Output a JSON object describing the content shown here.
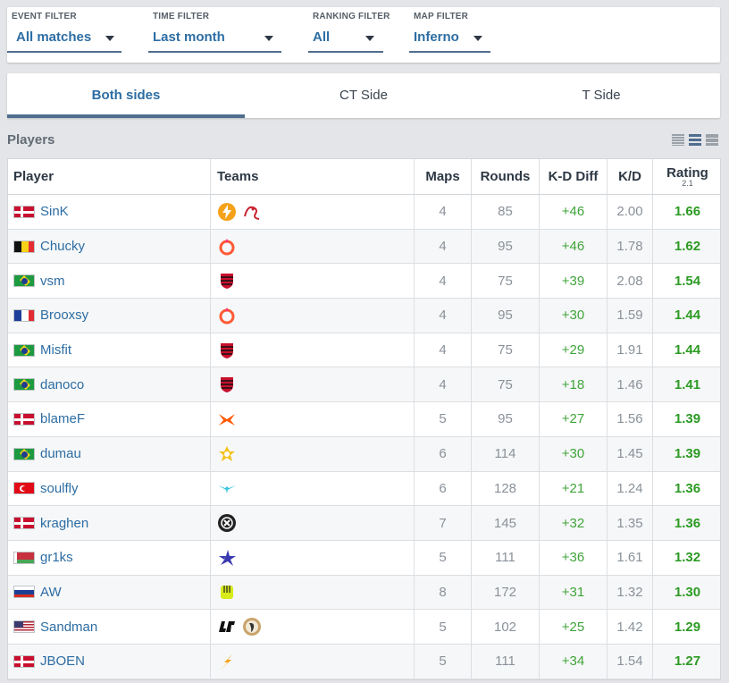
{
  "filters": {
    "event": {
      "label": "EVENT FILTER",
      "value": "All matches"
    },
    "time": {
      "label": "TIME FILTER",
      "value": "Last month"
    },
    "ranking": {
      "label": "RANKING FILTER",
      "value": "All"
    },
    "map": {
      "label": "MAP FILTER",
      "value": "Inferno"
    }
  },
  "tabs": [
    "Both sides",
    "CT Side",
    "T Side"
  ],
  "players_heading": "Players",
  "columns": {
    "player": "Player",
    "teams": "Teams",
    "maps": "Maps",
    "rounds": "Rounds",
    "kd_diff": "K-D Diff",
    "kd": "K/D",
    "rating": "Rating",
    "rating_version": "2.1"
  },
  "rows": [
    {
      "name": "SinK",
      "flag": "denmark",
      "teams": [
        "bolt-team-icon",
        "dragon-team-icon"
      ],
      "maps": "4",
      "rounds": "85",
      "kd_diff": "+46",
      "kd": "2.00",
      "rating": "1.66"
    },
    {
      "name": "Chucky",
      "flag": "belgium",
      "teams": [
        "drop-team-icon"
      ],
      "maps": "4",
      "rounds": "95",
      "kd_diff": "+46",
      "kd": "1.78",
      "rating": "1.62"
    },
    {
      "name": "vsm",
      "flag": "brazil",
      "teams": [
        "flamengo-team-icon"
      ],
      "maps": "4",
      "rounds": "75",
      "kd_diff": "+39",
      "kd": "2.08",
      "rating": "1.54"
    },
    {
      "name": "Brooxsy",
      "flag": "france",
      "teams": [
        "drop-team-icon"
      ],
      "maps": "4",
      "rounds": "95",
      "kd_diff": "+30",
      "kd": "1.59",
      "rating": "1.44"
    },
    {
      "name": "Misfit",
      "flag": "brazil",
      "teams": [
        "flamengo-team-icon"
      ],
      "maps": "4",
      "rounds": "75",
      "kd_diff": "+29",
      "kd": "1.91",
      "rating": "1.44"
    },
    {
      "name": "danoco",
      "flag": "brazil",
      "teams": [
        "flamengo-team-icon"
      ],
      "maps": "4",
      "rounds": "75",
      "kd_diff": "+18",
      "kd": "1.46",
      "rating": "1.41"
    },
    {
      "name": "blameF",
      "flag": "denmark",
      "teams": [
        "fnatic-team-icon"
      ],
      "maps": "5",
      "rounds": "95",
      "kd_diff": "+27",
      "kd": "1.56",
      "rating": "1.39"
    },
    {
      "name": "dumau",
      "flag": "brazil",
      "teams": [
        "legacy-team-icon"
      ],
      "maps": "6",
      "rounds": "114",
      "kd_diff": "+30",
      "kd": "1.45",
      "rating": "1.39"
    },
    {
      "name": "soulfly",
      "flag": "turkey",
      "teams": [
        "wings-team-icon"
      ],
      "maps": "6",
      "rounds": "128",
      "kd_diff": "+21",
      "kd": "1.24",
      "rating": "1.36"
    },
    {
      "name": "kraghen",
      "flag": "denmark",
      "teams": [
        "gear-team-icon"
      ],
      "maps": "7",
      "rounds": "145",
      "kd_diff": "+32",
      "kd": "1.35",
      "rating": "1.36"
    },
    {
      "name": "gr1ks",
      "flag": "belarus",
      "teams": [
        "star-team-icon"
      ],
      "maps": "5",
      "rounds": "111",
      "kd_diff": "+36",
      "kd": "1.61",
      "rating": "1.32"
    },
    {
      "name": "AW",
      "flag": "russia",
      "teams": [
        "glove-team-icon"
      ],
      "maps": "8",
      "rounds": "172",
      "kd_diff": "+31",
      "kd": "1.32",
      "rating": "1.30"
    },
    {
      "name": "Sandman",
      "flag": "usa",
      "teams": [
        "wordmark-team-icon",
        "eagle-team-icon"
      ],
      "maps": "5",
      "rounds": "102",
      "kd_diff": "+25",
      "kd": "1.42",
      "rating": "1.29"
    },
    {
      "name": "JBOEN",
      "flag": "denmark",
      "teams": [
        "lightning-team-icon"
      ],
      "maps": "5",
      "rounds": "111",
      "kd_diff": "+34",
      "kd": "1.54",
      "rating": "1.27"
    }
  ]
}
